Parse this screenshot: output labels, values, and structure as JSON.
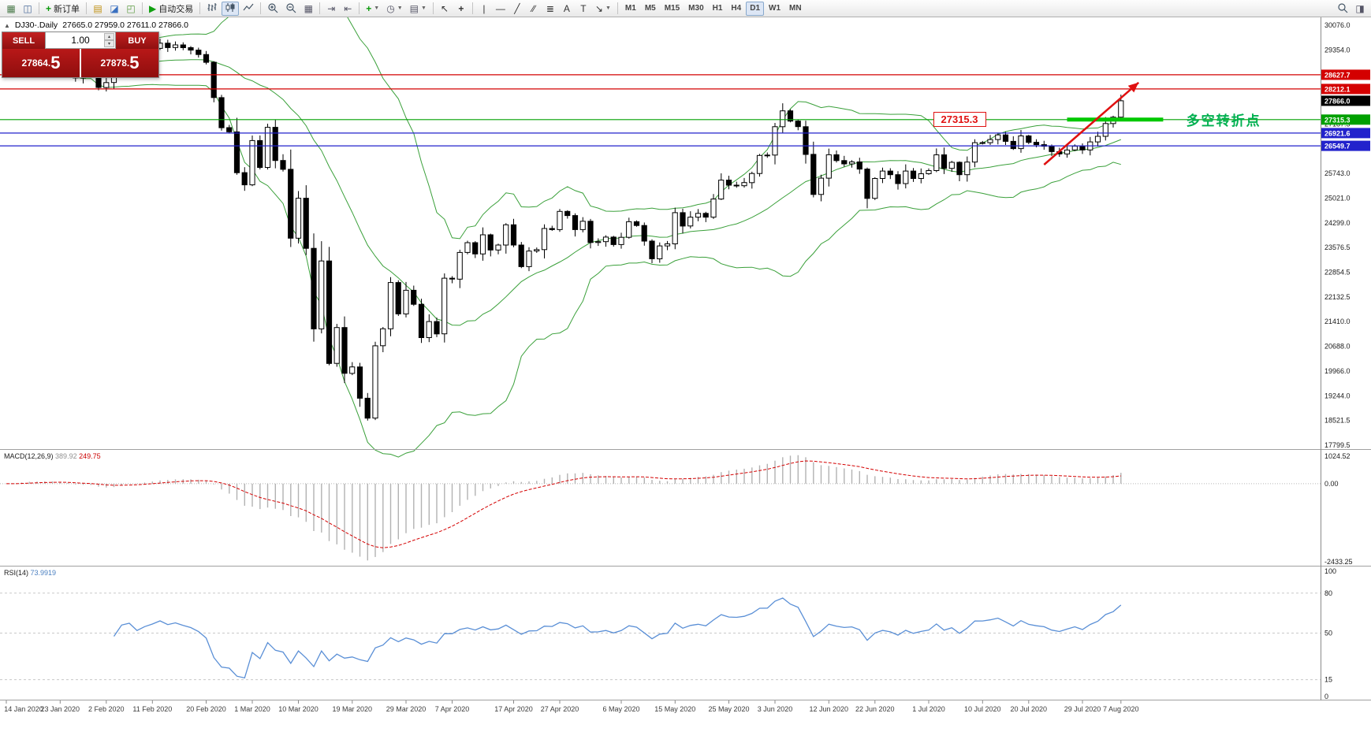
{
  "toolbar": {
    "left_items": [
      {
        "name": "new-chart-button",
        "glyph": "▦",
        "color": "#4a7a4a"
      },
      {
        "name": "window-list-button",
        "glyph": "◫",
        "color": "#4a6a9a"
      },
      {
        "type": "sep"
      },
      {
        "name": "new-order-button",
        "glyph": "+",
        "color": "#0a9a0a",
        "bold": true,
        "label": "新订单"
      },
      {
        "type": "sep"
      },
      {
        "name": "market-watch-button",
        "glyph": "▤",
        "color": "#c09010"
      },
      {
        "name": "data-window-button",
        "glyph": "◪",
        "color": "#3a70c0"
      },
      {
        "name": "navigator-button",
        "glyph": "◰",
        "color": "#5a9a40"
      },
      {
        "type": "sep"
      },
      {
        "name": "auto-trading-button",
        "glyph": "▶",
        "color": "#10a010",
        "label": "自动交易"
      },
      {
        "type": "sep"
      },
      {
        "name": "chart-bars-button",
        "svg": "bars"
      },
      {
        "name": "chart-candles-button",
        "svg": "candles",
        "active": true
      },
      {
        "name": "chart-line-button",
        "svg": "line"
      },
      {
        "type": "sep"
      },
      {
        "name": "zoom-in-button",
        "svg": "zoom-in"
      },
      {
        "name": "zoom-out-button",
        "svg": "zoom-out"
      },
      {
        "name": "tile-windows-button",
        "glyph": "▦",
        "color": "#556"
      },
      {
        "type": "sep"
      },
      {
        "name": "auto-scroll-button",
        "glyph": "⇥",
        "color": "#556"
      },
      {
        "name": "chart-shift-button",
        "glyph": "⇤",
        "color": "#556"
      },
      {
        "type": "sep"
      },
      {
        "name": "indicators-button",
        "glyph": "+",
        "color": "#0a9a0a",
        "bold": true,
        "caret": true
      },
      {
        "name": "periods-button",
        "glyph": "◷",
        "color": "#556",
        "caret": true
      },
      {
        "name": "templates-button",
        "glyph": "▤",
        "color": "#556",
        "caret": true
      },
      {
        "type": "sep"
      },
      {
        "name": "cursor-button",
        "glyph": "↖",
        "color": "#333"
      },
      {
        "name": "crosshair-button",
        "glyph": "+",
        "color": "#333",
        "bold": true
      },
      {
        "type": "sep"
      },
      {
        "name": "vertical-line-button",
        "glyph": "|",
        "color": "#333"
      },
      {
        "name": "horizontal-line-button",
        "glyph": "—",
        "color": "#333"
      },
      {
        "name": "trendline-button",
        "glyph": "╱",
        "color": "#333"
      },
      {
        "name": "channel-button",
        "glyph": "∕∕",
        "color": "#333"
      },
      {
        "name": "fibonacci-button",
        "glyph": "≣",
        "color": "#333"
      },
      {
        "name": "text-button",
        "glyph": "A",
        "color": "#333"
      },
      {
        "name": "text-label-button",
        "glyph": "T",
        "color": "#333"
      },
      {
        "name": "arrows-button",
        "glyph": "↘",
        "color": "#333",
        "caret": true
      },
      {
        "type": "sep"
      }
    ],
    "timeframes": [
      "M1",
      "M5",
      "M15",
      "M30",
      "H1",
      "H4",
      "D1",
      "W1",
      "MN"
    ],
    "active_timeframe": "D1",
    "right_items": [
      {
        "name": "search-button",
        "svg": "search"
      },
      {
        "name": "quick-panel-button",
        "glyph": "◨",
        "color": "#556"
      }
    ]
  },
  "chart": {
    "toggle_icon": "▲",
    "symbol_period": "DJ30-.Daily",
    "ohlc": "27665.0 27959.0 27611.0 27866.0"
  },
  "one_click": {
    "sell_label": "SELL",
    "buy_label": "BUY",
    "volume": "1.00",
    "sell_price_small": "27864.",
    "sell_price_big": "5",
    "buy_price_small": "27878.",
    "buy_price_big": "5"
  },
  "price_axis": {
    "ticks": [
      "30076.0",
      "29354.0",
      "28631.5",
      "27909.5",
      "27187.5",
      "26465.5",
      "25743.0",
      "25021.0",
      "24299.0",
      "23576.5",
      "22854.5",
      "22132.5",
      "21410.0",
      "20688.0",
      "19966.0",
      "19244.0",
      "18521.5",
      "17799.5"
    ]
  },
  "levels": [
    {
      "price": 28627.7,
      "label": "28627.7",
      "color": "#d40000"
    },
    {
      "price": 28212.1,
      "label": "28212.1",
      "color": "#d40000"
    },
    {
      "price": 27315.3,
      "label": "27315.3",
      "color": "#00a000"
    },
    {
      "price": 26921.6,
      "label": "26921.6",
      "color": "#2222cc"
    },
    {
      "price": 26549.7,
      "label": "26549.7",
      "color": "#2222cc"
    }
  ],
  "last_price": {
    "price": 27866.0,
    "label": "27866.0",
    "color": "#000000"
  },
  "annotations": {
    "callout": {
      "text": "27315.3",
      "index": 124,
      "price": 27315.3
    },
    "segment": {
      "from_index": 138,
      "to_index": 150.5,
      "price": 27315.3,
      "color": "#00c800"
    },
    "note": {
      "text": "多空转折点",
      "index": 153.5,
      "price": 27315.3,
      "color": "#00b050"
    },
    "arrow": {
      "from_index": 135,
      "from_price": 26000,
      "to_index": 147.3,
      "to_price": 28400,
      "color": "#e01010"
    }
  },
  "colors": {
    "band": "#3aa03a",
    "up_candle": "#ffffff",
    "down_candle": "#000000",
    "candle_border": "#000000",
    "macd_hist": "#b2b2b2",
    "macd_signal": "#d40000",
    "rsi_line": "#5a8fd6",
    "grid_dash": "#c8c8c8",
    "axis_text": "#1a1a1a",
    "separator": "#a0a0a0"
  },
  "chart_data": {
    "type": "candlestick",
    "symbol": "DJ30",
    "timeframe": "Daily",
    "closes": [
      28939,
      29030,
      29297,
      29348,
      29196,
      29186,
      29160,
      28990,
      28722,
      28535,
      28734,
      28859,
      28256,
      28400,
      28808,
      29290,
      29380,
      29102,
      29276,
      29398,
      29551,
      29423,
      29500,
      29420,
      29348,
      29220,
      28992,
      27960,
      27081,
      26958,
      25766,
      25409,
      26703,
      25917,
      27090,
      26121,
      25864,
      23851,
      25018,
      23553,
      21200,
      23185,
      20188,
      21237,
      19898,
      20087,
      19173,
      18591,
      20704,
      21200,
      22552,
      21636,
      22327,
      21917,
      20943,
      21413,
      21052,
      22679,
      22653,
      23433,
      23719,
      23390,
      23949,
      23504,
      23650,
      24242,
      23650,
      23018,
      23475,
      23515,
      24133,
      24101,
      24633,
      24512,
      24102,
      24345,
      23723,
      23749,
      23883,
      23664,
      23875,
      24331,
      24221,
      23764,
      23247,
      23625,
      23685,
      24597,
      24206,
      24465,
      24575,
      24465,
      24995,
      25548,
      25400,
      25383,
      25475,
      25742,
      26269,
      26281,
      27110,
      27572,
      27272,
      27110,
      26300,
      25128,
      25605,
      26289,
      26119,
      26022,
      26080,
      25871,
      25015,
      25595,
      25812,
      25706,
      25445,
      25812,
      25595,
      25734,
      25827,
      26287,
      25890,
      26067,
      25706,
      26075,
      26642,
      26643,
      26734,
      26870,
      26681,
      26470,
      26840,
      26652,
      26584,
      26539,
      26379,
      26313,
      26428,
      26539,
      26428,
      26664,
      26828,
      27201,
      27387,
      27866
    ],
    "x_labels": [
      "14 Jan 2020",
      "23 Jan 2020",
      "2 Feb 2020",
      "11 Feb 2020",
      "20 Feb 2020",
      "1 Mar 2020",
      "10 Mar 2020",
      "19 Mar 2020",
      "29 Mar 2020",
      "7 Apr 2020",
      "17 Apr 2020",
      "27 Apr 2020",
      "6 May 2020",
      "15 May 2020",
      "25 May 2020",
      "3 Jun 2020",
      "12 Jun 2020",
      "22 Jun 2020",
      "1 Jul 2020",
      "10 Jul 2020",
      "20 Jul 2020",
      "29 Jul 2020",
      "7 Aug 2020"
    ],
    "x_label_indices": [
      0,
      7,
      13,
      19,
      26,
      32,
      38,
      45,
      52,
      58,
      66,
      72,
      80,
      87,
      94,
      100,
      107,
      113,
      120,
      127,
      133,
      140,
      145
    ],
    "indicators": {
      "bollinger": {
        "period": 20,
        "deviation": 2
      },
      "macd": {
        "name": "MACD(12,26,9)",
        "main_value": "389.92",
        "signal_value": "249.75",
        "axis": [
          "1024.52",
          "0.00",
          "-2433.25"
        ]
      },
      "rsi": {
        "name": "RSI(14)",
        "value": "73.9919",
        "axis": [
          "100",
          "80",
          "50",
          "15",
          "0"
        ],
        "levels": [
          80,
          50,
          15
        ]
      }
    }
  }
}
